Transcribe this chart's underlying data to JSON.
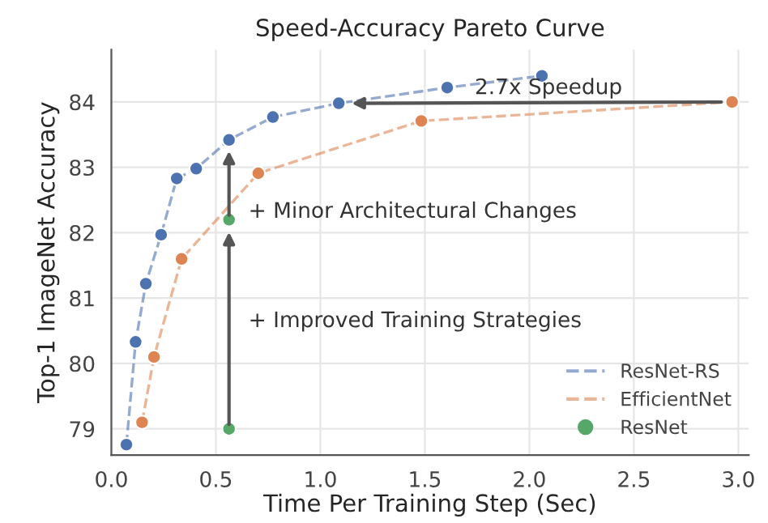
{
  "chart_data": {
    "type": "line",
    "title": "Speed-Accuracy Pareto Curve",
    "xlabel": "Time Per Training Step (Sec)",
    "ylabel": "Top-1 ImageNet Accuracy",
    "xlim": [
      0,
      3.05
    ],
    "ylim": [
      78.6,
      84.8
    ],
    "xticks": [
      {
        "value": 0,
        "label": "0.0"
      },
      0.5,
      {
        "value": 1,
        "label": "1.0"
      },
      1.5,
      {
        "value": 2,
        "label": "2.0"
      },
      2.5,
      {
        "value": 3,
        "label": "3.0"
      }
    ],
    "yticks": [
      79,
      80,
      81,
      82,
      83,
      84
    ],
    "grid": true,
    "legend": "bottom right",
    "marker": "circle",
    "series": [
      {
        "name": "ResNet-RS",
        "line_style": "dashed",
        "color": "#4c72b0",
        "x": [
          0.072,
          0.116,
          0.165,
          0.238,
          0.313,
          0.406,
          0.563,
          0.773,
          1.088,
          1.607,
          2.06
        ],
        "values": [
          78.76,
          80.33,
          81.22,
          81.97,
          82.83,
          82.98,
          83.42,
          83.77,
          83.98,
          84.22,
          84.4
        ]
      },
      {
        "name": "EfficientNet",
        "line_style": "dashed",
        "color": "#dd8452",
        "x": [
          0.147,
          0.204,
          0.336,
          0.703,
          1.483,
          2.97
        ],
        "values": [
          79.1,
          80.1,
          81.6,
          82.91,
          83.71,
          84.0
        ]
      },
      {
        "name": "ResNet",
        "type": "scatter",
        "color": "#55a868",
        "x": [
          0.563,
          0.563
        ],
        "values": [
          79.0,
          82.2
        ]
      }
    ],
    "annotations": [
      "+ Improved Training Strategies",
      "+ Minor Architectural Changes",
      "2.7x Speedup"
    ]
  }
}
